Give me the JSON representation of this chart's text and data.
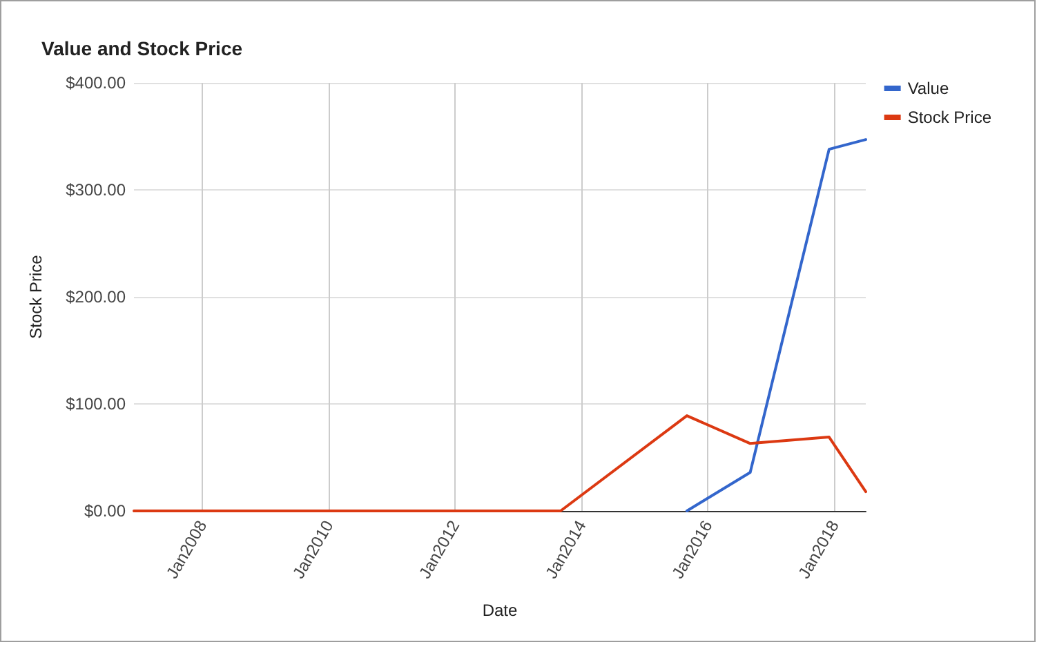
{
  "chart_data": {
    "type": "line",
    "title": "Value and Stock Price",
    "xlabel": "Date",
    "ylabel": "Stock Price",
    "series": [
      {
        "name": "Value",
        "color": "#3366cc",
        "x": [
          "2015-09",
          "2016-09",
          "2017-12",
          "2018-07"
        ],
        "values": [
          0,
          36,
          338,
          347
        ]
      },
      {
        "name": "Stock Price",
        "color": "#dc3912",
        "x": [
          "2006-12",
          "2013-09",
          "2015-09",
          "2016-09",
          "2017-12",
          "2018-07"
        ],
        "values": [
          0,
          0,
          89,
          63,
          69,
          18
        ]
      }
    ],
    "xlim": [
      "2006-12",
      "2018-07"
    ],
    "xticks": [
      {
        "value": "2008-01",
        "label": "Jan2008"
      },
      {
        "value": "2010-01",
        "label": "Jan2010"
      },
      {
        "value": "2012-01",
        "label": "Jan2012"
      },
      {
        "value": "2014-01",
        "label": "Jan2014"
      },
      {
        "value": "2016-01",
        "label": "Jan2016"
      },
      {
        "value": "2018-01",
        "label": "Jan2018"
      }
    ],
    "ylim": [
      0,
      400
    ],
    "yticks": [
      {
        "value": 0,
        "label": "$0.00"
      },
      {
        "value": 100,
        "label": "$100.00"
      },
      {
        "value": 200,
        "label": "$200.00"
      },
      {
        "value": 300,
        "label": "$300.00"
      },
      {
        "value": 400,
        "label": "$400.00"
      }
    ],
    "grid": true,
    "legend": "top right",
    "marker": "none",
    "line_style": "solid"
  }
}
